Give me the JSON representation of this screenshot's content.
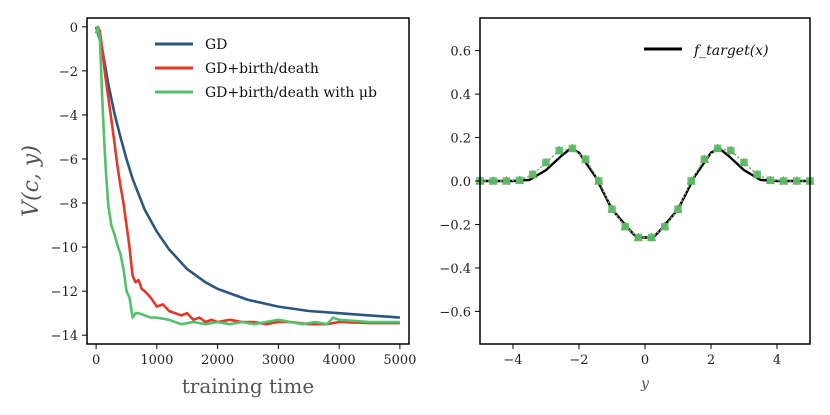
{
  "chart_data": [
    {
      "type": "line",
      "ylabel": "V(c, y)",
      "xlabel": "training time",
      "xlim": [
        -150,
        5150
      ],
      "ylim": [
        -14.4,
        0.4
      ],
      "xticks": [
        0,
        1000,
        2000,
        3000,
        4000,
        5000
      ],
      "yticks": [
        0,
        -2,
        -4,
        -6,
        -8,
        -10,
        -12,
        -14
      ],
      "xtick_labels": [
        "0",
        "1000",
        "2000",
        "3000",
        "4000",
        "5000"
      ],
      "ytick_labels": [
        "0",
        "−2",
        "−4",
        "−6",
        "−8",
        "−10",
        "−12",
        "−14"
      ],
      "legend": [
        "GD",
        "GD+birth/death",
        "GD+birth/death with μb"
      ],
      "legend_placement": "top-right",
      "series": [
        {
          "name": "GD",
          "color": "#2b567f",
          "x": [
            0,
            50,
            100,
            200,
            300,
            400,
            500,
            600,
            800,
            1000,
            1200,
            1500,
            1800,
            2000,
            2500,
            3000,
            3500,
            4000,
            4500,
            5000
          ],
          "y": [
            0,
            -0.5,
            -1.0,
            -2.6,
            -3.9,
            -5.0,
            -6.0,
            -6.9,
            -8.3,
            -9.3,
            -10.1,
            -11.0,
            -11.6,
            -11.9,
            -12.4,
            -12.7,
            -12.9,
            -13.0,
            -13.1,
            -13.2
          ]
        },
        {
          "name": "GD+birth/death",
          "color": "#e0392a",
          "x": [
            0,
            30,
            60,
            100,
            150,
            200,
            250,
            300,
            350,
            400,
            450,
            500,
            550,
            600,
            650,
            700,
            750,
            800,
            900,
            1000,
            1100,
            1200,
            1300,
            1400,
            1500,
            1600,
            1700,
            1800,
            1900,
            2000,
            2200,
            2400,
            2600,
            2800,
            3000,
            3200,
            3500,
            3800,
            4000,
            4500,
            5000
          ],
          "y": [
            -0.3,
            0,
            -0.2,
            -1.0,
            -2.2,
            -3.2,
            -4.2,
            -5.2,
            -6.3,
            -7.2,
            -8.0,
            -9.0,
            -10.0,
            -11.3,
            -11.6,
            -11.5,
            -11.9,
            -12.0,
            -12.3,
            -12.7,
            -12.6,
            -12.9,
            -13.0,
            -13.1,
            -13.0,
            -13.3,
            -13.2,
            -13.4,
            -13.3,
            -13.4,
            -13.3,
            -13.4,
            -13.4,
            -13.5,
            -13.4,
            -13.4,
            -13.5,
            -13.5,
            -13.4,
            -13.45,
            -13.45
          ]
        },
        {
          "name": "GD+birth/death with μb",
          "color": "#55c06a",
          "x": [
            0,
            30,
            60,
            80,
            100,
            130,
            160,
            200,
            250,
            300,
            350,
            400,
            450,
            500,
            550,
            600,
            650,
            700,
            800,
            900,
            1000,
            1200,
            1400,
            1600,
            1800,
            2000,
            2200,
            2400,
            2600,
            2800,
            3000,
            3200,
            3400,
            3600,
            3800,
            3900,
            4000,
            4500,
            5000
          ],
          "y": [
            -0.3,
            0,
            -0.5,
            -1.8,
            -3.2,
            -5.0,
            -6.5,
            -8.1,
            -9.0,
            -9.4,
            -9.9,
            -10.3,
            -11.0,
            -12.0,
            -12.3,
            -13.2,
            -13.0,
            -13.0,
            -13.1,
            -13.2,
            -13.2,
            -13.3,
            -13.5,
            -13.4,
            -13.5,
            -13.4,
            -13.5,
            -13.4,
            -13.5,
            -13.4,
            -13.3,
            -13.4,
            -13.5,
            -13.4,
            -13.5,
            -13.2,
            -13.3,
            -13.4,
            -13.4
          ]
        }
      ]
    },
    {
      "type": "line",
      "xlabel": "y",
      "xlim": [
        -5,
        5
      ],
      "ylim": [
        -0.75,
        0.75
      ],
      "xticks": [
        -4,
        -2,
        0,
        2,
        4
      ],
      "yticks": [
        0.6,
        0.4,
        0.2,
        0.0,
        -0.2,
        -0.4,
        -0.6
      ],
      "xtick_labels": [
        "−4",
        "−2",
        "0",
        "2",
        "4"
      ],
      "ytick_labels": [
        "0.6",
        "0.4",
        "0.2",
        "0.0",
        "−0.2",
        "−0.4",
        "−0.6"
      ],
      "legend": [
        "f_target(x)"
      ],
      "legend_placement": "top-right",
      "series": [
        {
          "name": "f_target(x)",
          "color": "#000000",
          "x": [
            -5,
            -4.5,
            -4,
            -3.5,
            -3,
            -2.5,
            -2.25,
            -2,
            -1.5,
            -1,
            -0.5,
            -0.25,
            0,
            0.25,
            0.5,
            1,
            1.5,
            2,
            2.25,
            2.5,
            3,
            3.5,
            4,
            4.5,
            5
          ],
          "y": [
            0,
            0,
            0,
            0.005,
            0.05,
            0.12,
            0.15,
            0.13,
            0.02,
            -0.13,
            -0.22,
            -0.26,
            -0.26,
            -0.26,
            -0.22,
            -0.13,
            0.02,
            0.13,
            0.15,
            0.12,
            0.05,
            0.005,
            0,
            0,
            0
          ]
        },
        {
          "name": "GD+birth/death",
          "color": "#e0392a",
          "x": [
            -5,
            -4.6,
            -4.2,
            -3.8,
            -3.4,
            -3.0,
            -2.6,
            -2.2,
            -1.8,
            -1.4,
            -1.0,
            -0.6,
            -0.2,
            0.2,
            0.6,
            1.0,
            1.4,
            1.8,
            2.2,
            2.6,
            3.0,
            3.4,
            3.8,
            4.2,
            4.6,
            5.0
          ],
          "y": [
            0,
            0,
            0,
            0.003,
            0.03,
            0.085,
            0.14,
            0.15,
            0.1,
            0.0,
            -0.13,
            -0.21,
            -0.26,
            -0.26,
            -0.21,
            -0.13,
            0.0,
            0.1,
            0.15,
            0.14,
            0.085,
            0.03,
            0.003,
            0,
            0,
            0
          ]
        },
        {
          "name": "GD+birth/death with μb",
          "color": "#55c06a",
          "x": [
            -5,
            -4.6,
            -4.2,
            -3.8,
            -3.4,
            -3.0,
            -2.6,
            -2.2,
            -1.8,
            -1.4,
            -1.0,
            -0.6,
            -0.2,
            0.2,
            0.6,
            1.0,
            1.4,
            1.8,
            2.2,
            2.6,
            3.0,
            3.4,
            3.8,
            4.2,
            4.6,
            5.0
          ],
          "y": [
            0,
            0,
            0,
            0.003,
            0.03,
            0.085,
            0.14,
            0.15,
            0.1,
            0.0,
            -0.13,
            -0.21,
            -0.26,
            -0.26,
            -0.21,
            -0.13,
            0.0,
            0.1,
            0.15,
            0.14,
            0.085,
            0.03,
            0.003,
            0,
            0,
            0
          ]
        }
      ]
    }
  ]
}
